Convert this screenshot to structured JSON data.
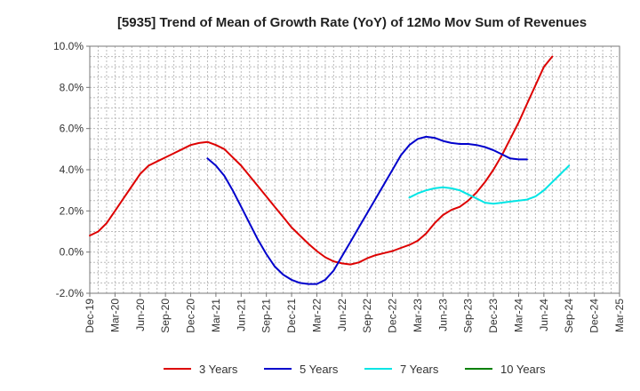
{
  "chart_data": {
    "type": "line",
    "title": "[5935]  Trend of Mean of Growth Rate (YoY) of 12Mo Mov Sum of Revenues",
    "xlabel": "",
    "ylabel": "",
    "ylim": [
      -2.0,
      10.0
    ],
    "y_ticks": [
      -2,
      0,
      2,
      4,
      6,
      8,
      10
    ],
    "y_tick_labels": [
      "-2.0%",
      "0.0%",
      "2.0%",
      "4.0%",
      "6.0%",
      "8.0%",
      "10.0%"
    ],
    "x_range_months": [
      0,
      63
    ],
    "x_ticks": [
      0,
      3,
      6,
      9,
      12,
      15,
      18,
      21,
      24,
      27,
      30,
      33,
      36,
      39,
      42,
      45,
      48,
      51,
      54,
      57,
      60,
      63
    ],
    "x_tick_labels": [
      "Dec-19",
      "Mar-20",
      "Jun-20",
      "Sep-20",
      "Dec-20",
      "Mar-21",
      "Jun-21",
      "Sep-21",
      "Dec-21",
      "Mar-22",
      "Jun-22",
      "Sep-22",
      "Dec-22",
      "Mar-23",
      "Jun-23",
      "Sep-23",
      "Dec-23",
      "Mar-24",
      "Jun-24",
      "Sep-24",
      "Dec-24",
      "Mar-25"
    ],
    "grid": true,
    "legend_position": "bottom",
    "series": [
      {
        "name": "3 Years",
        "color": "#dd0000",
        "x": [
          0,
          1,
          2,
          3,
          4,
          5,
          6,
          7,
          8,
          9,
          10,
          11,
          12,
          13,
          14,
          15,
          16,
          17,
          18,
          19,
          20,
          21,
          22,
          23,
          24,
          25,
          26,
          27,
          28,
          29,
          30,
          31,
          32,
          33,
          34,
          35,
          36,
          37,
          38,
          39,
          40,
          41,
          42,
          43,
          44,
          45,
          46,
          47,
          48,
          49,
          50,
          51,
          52,
          53,
          54,
          55,
          56,
          57,
          58,
          59,
          60
        ],
        "values": [
          0.8,
          1.0,
          1.4,
          2.0,
          2.6,
          3.2,
          3.8,
          4.2,
          4.4,
          4.6,
          4.8,
          5.0,
          5.2,
          5.3,
          5.35,
          5.2,
          5.0,
          4.6,
          4.2,
          3.7,
          3.2,
          2.7,
          2.2,
          1.7,
          1.2,
          0.8,
          0.4,
          0.05,
          -0.25,
          -0.45,
          -0.55,
          -0.6,
          -0.5,
          -0.3,
          -0.15,
          -0.05,
          0.05,
          0.2,
          0.35,
          0.55,
          0.9,
          1.4,
          1.8,
          2.05,
          2.2,
          2.5,
          2.9,
          3.4,
          4.0,
          4.7,
          5.5,
          6.3,
          7.2,
          8.1,
          9.0,
          9.5,
          null,
          null,
          null,
          null,
          null
        ]
      },
      {
        "name": "5 Years",
        "color": "#0000cc",
        "x": [
          14,
          15,
          16,
          17,
          18,
          19,
          20,
          21,
          22,
          23,
          24,
          25,
          26,
          27,
          28,
          29,
          30,
          31,
          32,
          33,
          34,
          35,
          36,
          37,
          38,
          39,
          40,
          41,
          42,
          43,
          44,
          45,
          46,
          47,
          48,
          49,
          50,
          51,
          52,
          53,
          54,
          55,
          56,
          57,
          58,
          59,
          60
        ],
        "values": [
          4.55,
          4.2,
          3.7,
          3.0,
          2.2,
          1.4,
          0.6,
          -0.1,
          -0.7,
          -1.1,
          -1.35,
          -1.5,
          -1.55,
          -1.55,
          -1.35,
          -0.9,
          -0.2,
          0.5,
          1.2,
          1.9,
          2.6,
          3.3,
          4.0,
          4.7,
          5.2,
          5.5,
          5.6,
          5.55,
          5.4,
          5.3,
          5.25,
          5.25,
          5.2,
          5.1,
          4.95,
          4.75,
          4.55,
          4.5,
          4.5,
          null,
          null,
          null,
          null,
          null,
          null,
          null,
          null
        ]
      },
      {
        "name": "7 Years",
        "color": "#00e5e5",
        "x": [
          38,
          39,
          40,
          41,
          42,
          43,
          44,
          45,
          46,
          47,
          48,
          49,
          50,
          51,
          52,
          53,
          54,
          55,
          56,
          57,
          58,
          59,
          60
        ],
        "values": [
          2.65,
          2.85,
          3.0,
          3.1,
          3.15,
          3.1,
          3.0,
          2.8,
          2.6,
          2.4,
          2.35,
          2.4,
          2.45,
          2.5,
          2.55,
          2.7,
          3.0,
          3.4,
          3.8,
          4.2,
          null,
          null,
          null
        ]
      },
      {
        "name": "10 Years",
        "color": "#008000",
        "x": [],
        "values": []
      }
    ]
  }
}
